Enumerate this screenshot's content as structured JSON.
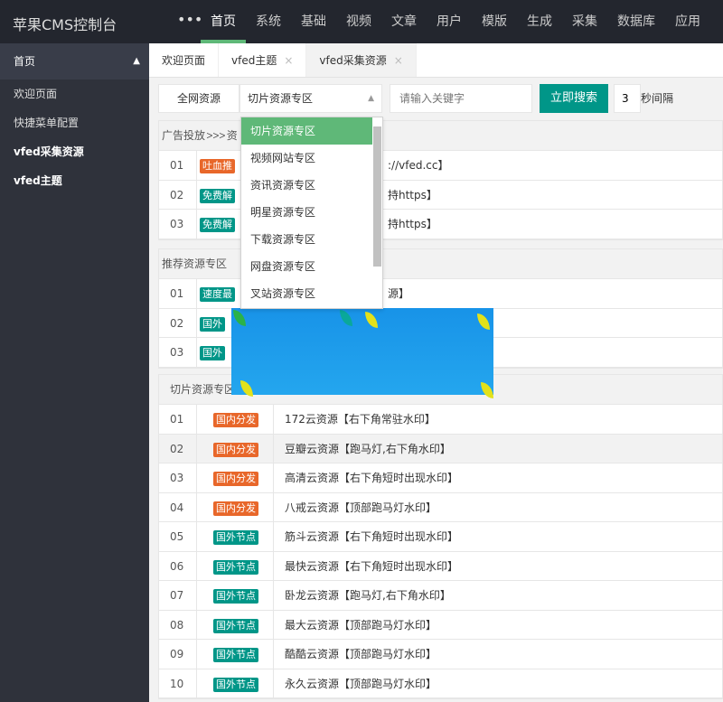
{
  "app_title": "苹果CMS控制台",
  "top_nav": {
    "more": "•••",
    "items": [
      "首页",
      "系统",
      "基础",
      "视频",
      "文章",
      "用户",
      "模版",
      "生成",
      "采集",
      "数据库",
      "应用"
    ],
    "active": 0
  },
  "sidebar": {
    "header": "首页",
    "items": [
      "欢迎页面",
      "快捷菜单配置",
      "vfed采集资源",
      "vfed主题"
    ]
  },
  "tabs": [
    {
      "label": "欢迎页面"
    },
    {
      "label": "vfed主题",
      "close": "×"
    },
    {
      "label": "vfed采集资源",
      "close": "×"
    }
  ],
  "search": {
    "all_button": "全网资源",
    "select_value": "切片资源专区",
    "keyword_placeholder": "请输入关键字",
    "search_button": "立即搜索",
    "interval_value": "3",
    "interval_label": "秒间隔"
  },
  "colors": {
    "orange": "#e8672a",
    "teal": "#009688",
    "green": "#5fb878"
  },
  "sections": [
    {
      "title": "广告投放 >>> 资",
      "rows": [
        [
          "01",
          "吐血推",
          "orange",
          "://vfed.cc】"
        ],
        [
          "02",
          "免费解",
          "teal",
          "持https】"
        ],
        [
          "03",
          "免费解",
          "teal",
          "持https】"
        ]
      ]
    },
    {
      "title": "推荐资源专区",
      "rows": [
        [
          "01",
          "速度最",
          "teal",
          "源】"
        ],
        [
          "02",
          "国外",
          "teal",
          ""
        ],
        [
          "03",
          "国外",
          "teal",
          ""
        ]
      ]
    },
    {
      "title": "切片资源专区",
      "rows": [
        [
          "01",
          "国内分发",
          "orange",
          "172云资源【右下角常驻水印】"
        ],
        [
          "02",
          "国内分发",
          "orange",
          "豆瓣云资源【跑马灯,右下角水印】"
        ],
        [
          "03",
          "国内分发",
          "orange",
          "高清云资源【右下角短时出现水印】"
        ],
        [
          "04",
          "国内分发",
          "orange",
          "八戒云资源【顶部跑马灯水印】"
        ],
        [
          "05",
          "国外节点",
          "teal",
          "筋斗云资源【右下角短时出现水印】"
        ],
        [
          "06",
          "国外节点",
          "teal",
          "最快云资源【右下角短时出现水印】"
        ],
        [
          "07",
          "国外节点",
          "teal",
          "卧龙云资源【跑马灯,右下角水印】"
        ],
        [
          "08",
          "国外节点",
          "teal",
          "最大云资源【顶部跑马灯水印】"
        ],
        [
          "09",
          "国外节点",
          "teal",
          "酷酷云资源【顶部跑马灯水印】"
        ],
        [
          "10",
          "国外节点",
          "teal",
          "永久云资源【顶部跑马灯水印】"
        ]
      ]
    }
  ],
  "dropdown_options": [
    "切片资源专区",
    "视频网站专区",
    "资讯资源专区",
    "明星资源专区",
    "下载资源专区",
    "网盘资源专区",
    "叉站资源专区"
  ]
}
